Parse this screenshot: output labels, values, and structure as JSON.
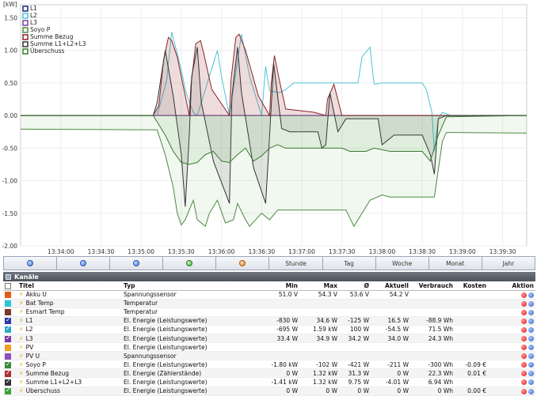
{
  "chart_data": {
    "type": "line",
    "ylabel": "[kW]",
    "ylim": [
      -2.0,
      1.7
    ],
    "xlim": [
      0.0,
      6.3
    ],
    "y_ticks": [
      1.5,
      1.0,
      0.5,
      0.0,
      -0.5,
      -1.0,
      -1.5,
      -2.0
    ],
    "y_tick_labels": [
      "1.50",
      "1.00",
      "0.50",
      "0.00",
      "-0.50",
      "-1.00",
      "-1.50",
      "-2.00"
    ],
    "x_ticks": [
      0.5,
      1.0,
      1.5,
      2.0,
      2.5,
      3.0,
      3.5,
      4.0,
      4.5,
      5.0,
      5.5,
      6.0
    ],
    "x_tick_labels": [
      "13:34:00",
      "13:34:30",
      "13:35:00",
      "13:35:30",
      "13:36:00",
      "13:36:30",
      "13:37:00",
      "13:37:30",
      "13:38:00",
      "13:38:30",
      "13:39:00",
      "13:39:30"
    ],
    "grid": true,
    "legend": "top-left",
    "series": [
      {
        "name": "L1",
        "color": "#1a237e",
        "x": [
          0.0,
          6.3
        ],
        "y": [
          0.0,
          0.0
        ]
      },
      {
        "name": "L2",
        "color": "#4fc3d6",
        "x": [
          0,
          1.7,
          1.82,
          1.88,
          1.95,
          2.0,
          2.05,
          2.1,
          2.15,
          2.2,
          2.45,
          2.5,
          2.55,
          2.6,
          2.75,
          2.85,
          2.95,
          3.0,
          3.05,
          3.1,
          3.22,
          3.3,
          3.35,
          3.4,
          3.5,
          4.2,
          4.25,
          4.35,
          4.4,
          4.5,
          5.0,
          5.05,
          5.12,
          5.15,
          5.2,
          5.25,
          5.35,
          6.3
        ],
        "y": [
          0.0,
          0.0,
          0.55,
          1.28,
          0.95,
          0.7,
          0.4,
          0.2,
          0.05,
          0.0,
          1.0,
          0.6,
          0.3,
          0.0,
          1.25,
          0.6,
          0.2,
          0.0,
          0.75,
          0.38,
          0.35,
          0.4,
          0.45,
          0.5,
          0.5,
          0.5,
          0.9,
          1.05,
          0.48,
          0.5,
          0.5,
          0.4,
          0.05,
          -0.55,
          -0.05,
          0.05,
          0.0,
          0.0
        ]
      },
      {
        "name": "L3",
        "color": "#7b3fa0",
        "x": [
          0.0,
          6.3
        ],
        "y": [
          0.0,
          0.0
        ]
      },
      {
        "name": "Soyo P",
        "color": "#4a8a3f",
        "x": [
          0,
          1.7,
          1.8,
          1.9,
          1.95,
          2.0,
          2.05,
          2.15,
          2.2,
          2.3,
          2.35,
          2.45,
          2.55,
          2.65,
          2.7,
          2.8,
          2.85,
          3.0,
          3.1,
          3.2,
          3.3,
          3.45,
          4.05,
          4.15,
          4.2,
          4.35,
          4.5,
          4.6,
          5.15,
          5.25,
          5.3,
          5.35,
          6.3
        ],
        "y": [
          -0.21,
          -0.22,
          -0.6,
          -1.1,
          -1.5,
          -1.68,
          -1.6,
          -1.3,
          -1.6,
          -1.7,
          -1.5,
          -1.3,
          -1.65,
          -1.6,
          -1.35,
          -1.6,
          -1.7,
          -1.5,
          -1.6,
          -1.45,
          -1.45,
          -1.45,
          -1.45,
          -1.7,
          -1.6,
          -1.3,
          -1.22,
          -1.25,
          -1.25,
          -0.4,
          -0.26,
          -0.26,
          -0.27
        ]
      },
      {
        "name": "Summe Bezug",
        "color": "#8b2323",
        "x": [
          0,
          1.65,
          1.72,
          1.78,
          1.84,
          1.88,
          1.95,
          2.1,
          2.12,
          2.18,
          2.24,
          2.28,
          2.38,
          2.6,
          2.62,
          2.68,
          2.72,
          2.8,
          2.96,
          3.1,
          3.12,
          3.16,
          3.22,
          3.3,
          3.65,
          3.8,
          3.82,
          3.9,
          4.0,
          4.5,
          6.3
        ],
        "y": [
          0,
          0,
          0.15,
          0.85,
          1.2,
          1.15,
          0.9,
          0,
          0.45,
          1.1,
          1.15,
          0.95,
          0.4,
          0,
          0.55,
          1.2,
          1.25,
          1.0,
          0.3,
          0,
          0.5,
          0.92,
          0.55,
          0.1,
          0.05,
          0,
          0.25,
          0.48,
          0,
          0,
          0
        ]
      },
      {
        "name": "Summe L1+L2+L3",
        "color": "#333333",
        "x": [
          0,
          1.65,
          1.7,
          1.8,
          1.9,
          2.0,
          2.05,
          2.1,
          2.13,
          2.2,
          2.25,
          2.4,
          2.6,
          2.63,
          2.7,
          2.75,
          2.9,
          3.05,
          3.1,
          3.15,
          3.25,
          3.35,
          3.7,
          3.75,
          3.8,
          3.85,
          3.95,
          4.05,
          4.45,
          4.5,
          4.65,
          5.0,
          5.1,
          5.15,
          5.2,
          5.3,
          6.3
        ],
        "y": [
          0.0,
          0.0,
          0.2,
          1.0,
          0.3,
          -0.6,
          -1.4,
          -0.3,
          0.6,
          1.05,
          0.2,
          -0.7,
          -1.35,
          0.3,
          1.05,
          0.35,
          -0.8,
          -1.35,
          -0.3,
          0.8,
          -0.2,
          -0.25,
          -0.25,
          -0.5,
          -0.45,
          0.35,
          -0.25,
          -0.05,
          -0.05,
          -0.45,
          -0.3,
          -0.3,
          -0.6,
          -0.9,
          -0.05,
          0.0,
          0.0
        ]
      },
      {
        "name": "Überschuss",
        "color": "#3a7a2f",
        "x": [
          0,
          1.65,
          1.8,
          1.9,
          2.0,
          2.1,
          2.2,
          2.3,
          2.4,
          2.5,
          2.6,
          2.7,
          2.8,
          2.9,
          3.0,
          3.1,
          3.2,
          3.3,
          3.45,
          3.6,
          3.75,
          3.9,
          4.0,
          4.1,
          4.2,
          4.3,
          4.4,
          4.6,
          4.8,
          5.0,
          5.1,
          5.2,
          5.3,
          6.3
        ],
        "y": [
          0.0,
          0.0,
          -0.3,
          -0.55,
          -0.72,
          -0.75,
          -0.72,
          -0.6,
          -0.55,
          -0.7,
          -0.72,
          -0.6,
          -0.5,
          -0.7,
          -0.62,
          -0.5,
          -0.45,
          -0.5,
          -0.5,
          -0.5,
          -0.5,
          -0.5,
          -0.5,
          -0.55,
          -0.55,
          -0.55,
          -0.5,
          -0.55,
          -0.55,
          -0.55,
          -0.7,
          -0.3,
          -0.02,
          0.0
        ]
      }
    ]
  },
  "navbar": {
    "buttons": [
      {
        "name": "nav-first-button",
        "icon": "blue-circle-icon",
        "label": ""
      },
      {
        "name": "nav-prev-button",
        "icon": "blue-circle-icon",
        "label": ""
      },
      {
        "name": "nav-next-button",
        "icon": "blue-circle-icon",
        "label": ""
      },
      {
        "name": "zoom-in-button",
        "icon": "zoom-in-icon",
        "label": ""
      },
      {
        "name": "zoom-out-button",
        "icon": "zoom-out-icon",
        "label": ""
      },
      {
        "name": "period-stunde-button",
        "icon": "",
        "label": "Stunde"
      },
      {
        "name": "period-tag-button",
        "icon": "",
        "label": "Tag"
      },
      {
        "name": "period-woche-button",
        "icon": "",
        "label": "Woche"
      },
      {
        "name": "period-monat-button",
        "icon": "",
        "label": "Monat"
      },
      {
        "name": "period-jahr-button",
        "icon": "",
        "label": "Jahr"
      }
    ]
  },
  "channels": {
    "title": "Kanäle",
    "columns": {
      "titel": "Titel",
      "typ": "Typ",
      "min": "Min",
      "max": "Max",
      "avg": "Ø",
      "aktuell": "Aktuell",
      "verbrauch": "Verbrauch",
      "kosten": "Kosten",
      "aktion": "Aktion"
    },
    "rows": [
      {
        "color": "#e05a1a",
        "checked": false,
        "title": "Akku U",
        "type": "Spannungssensor",
        "min": "51.0 V",
        "max": "54.3 V",
        "avg": "53.6 V",
        "current": "54.2 V",
        "usage": "",
        "cost": ""
      },
      {
        "color": "#29c6d8",
        "checked": false,
        "title": "Bat Temp",
        "type": "Temperatur",
        "min": "",
        "max": "",
        "avg": "",
        "current": "",
        "usage": "",
        "cost": ""
      },
      {
        "color": "#7a3a2a",
        "checked": false,
        "title": "Esmart Temp",
        "type": "Temperatur",
        "min": "",
        "max": "",
        "avg": "",
        "current": "",
        "usage": "",
        "cost": ""
      },
      {
        "color": "#2a3aa8",
        "checked": true,
        "title": "L1",
        "type": "El. Energie (Leistungswerte)",
        "min": "-830 W",
        "max": "34.6 W",
        "avg": "-125 W",
        "current": "16.5 W",
        "usage": "-88.9 Wh",
        "cost": ""
      },
      {
        "color": "#2aa8c8",
        "checked": true,
        "title": "L2",
        "type": "El. Energie (Leistungswerte)",
        "min": "-695 W",
        "max": "1.59 kW",
        "avg": "100 W",
        "current": "-54.5 W",
        "usage": "71.5 Wh",
        "cost": ""
      },
      {
        "color": "#7a3aa8",
        "checked": true,
        "title": "L3",
        "type": "El. Energie (Leistungswerte)",
        "min": "33.4 W",
        "max": "34.9 W",
        "avg": "34.2 W",
        "current": "34.0 W",
        "usage": "24.3 Wh",
        "cost": ""
      },
      {
        "color": "#f0a020",
        "checked": false,
        "title": "PV",
        "type": "El. Energie (Leistungswerte)",
        "min": "",
        "max": "",
        "avg": "",
        "current": "",
        "usage": "",
        "cost": ""
      },
      {
        "color": "#8a50c0",
        "checked": false,
        "title": "PV U",
        "type": "Spannungssensor",
        "min": "",
        "max": "",
        "avg": "",
        "current": "",
        "usage": "",
        "cost": ""
      },
      {
        "color": "#3a8a3a",
        "checked": true,
        "title": "Soyo P",
        "type": "El. Energie (Leistungswerte)",
        "min": "-1.80 kW",
        "max": "-102 W",
        "avg": "-421 W",
        "current": "-211 W",
        "usage": "-300 Wh",
        "cost": "-0.09 €"
      },
      {
        "color": "#b03030",
        "checked": true,
        "title": "Summe Bezug",
        "type": "El. Energie (Zählerstände)",
        "min": "0 W",
        "max": "1.32 kW",
        "avg": "31.3 W",
        "current": "0 W",
        "usage": "22.3 Wh",
        "cost": "0.01 €"
      },
      {
        "color": "#333333",
        "checked": true,
        "title": "Summe L1+L2+L3",
        "type": "El. Energie (Leistungswerte)",
        "min": "-1.41 kW",
        "max": "1.32 kW",
        "avg": "9.75 W",
        "current": "-4.01 W",
        "usage": "6.94 Wh",
        "cost": ""
      },
      {
        "color": "#3aa03a",
        "checked": true,
        "title": "Überschuss",
        "type": "El. Energie (Leistungswerte)",
        "min": "0 W",
        "max": "0 W",
        "avg": "0 W",
        "current": "0 W",
        "usage": "0 Wh",
        "cost": "0.00 €"
      }
    ]
  }
}
